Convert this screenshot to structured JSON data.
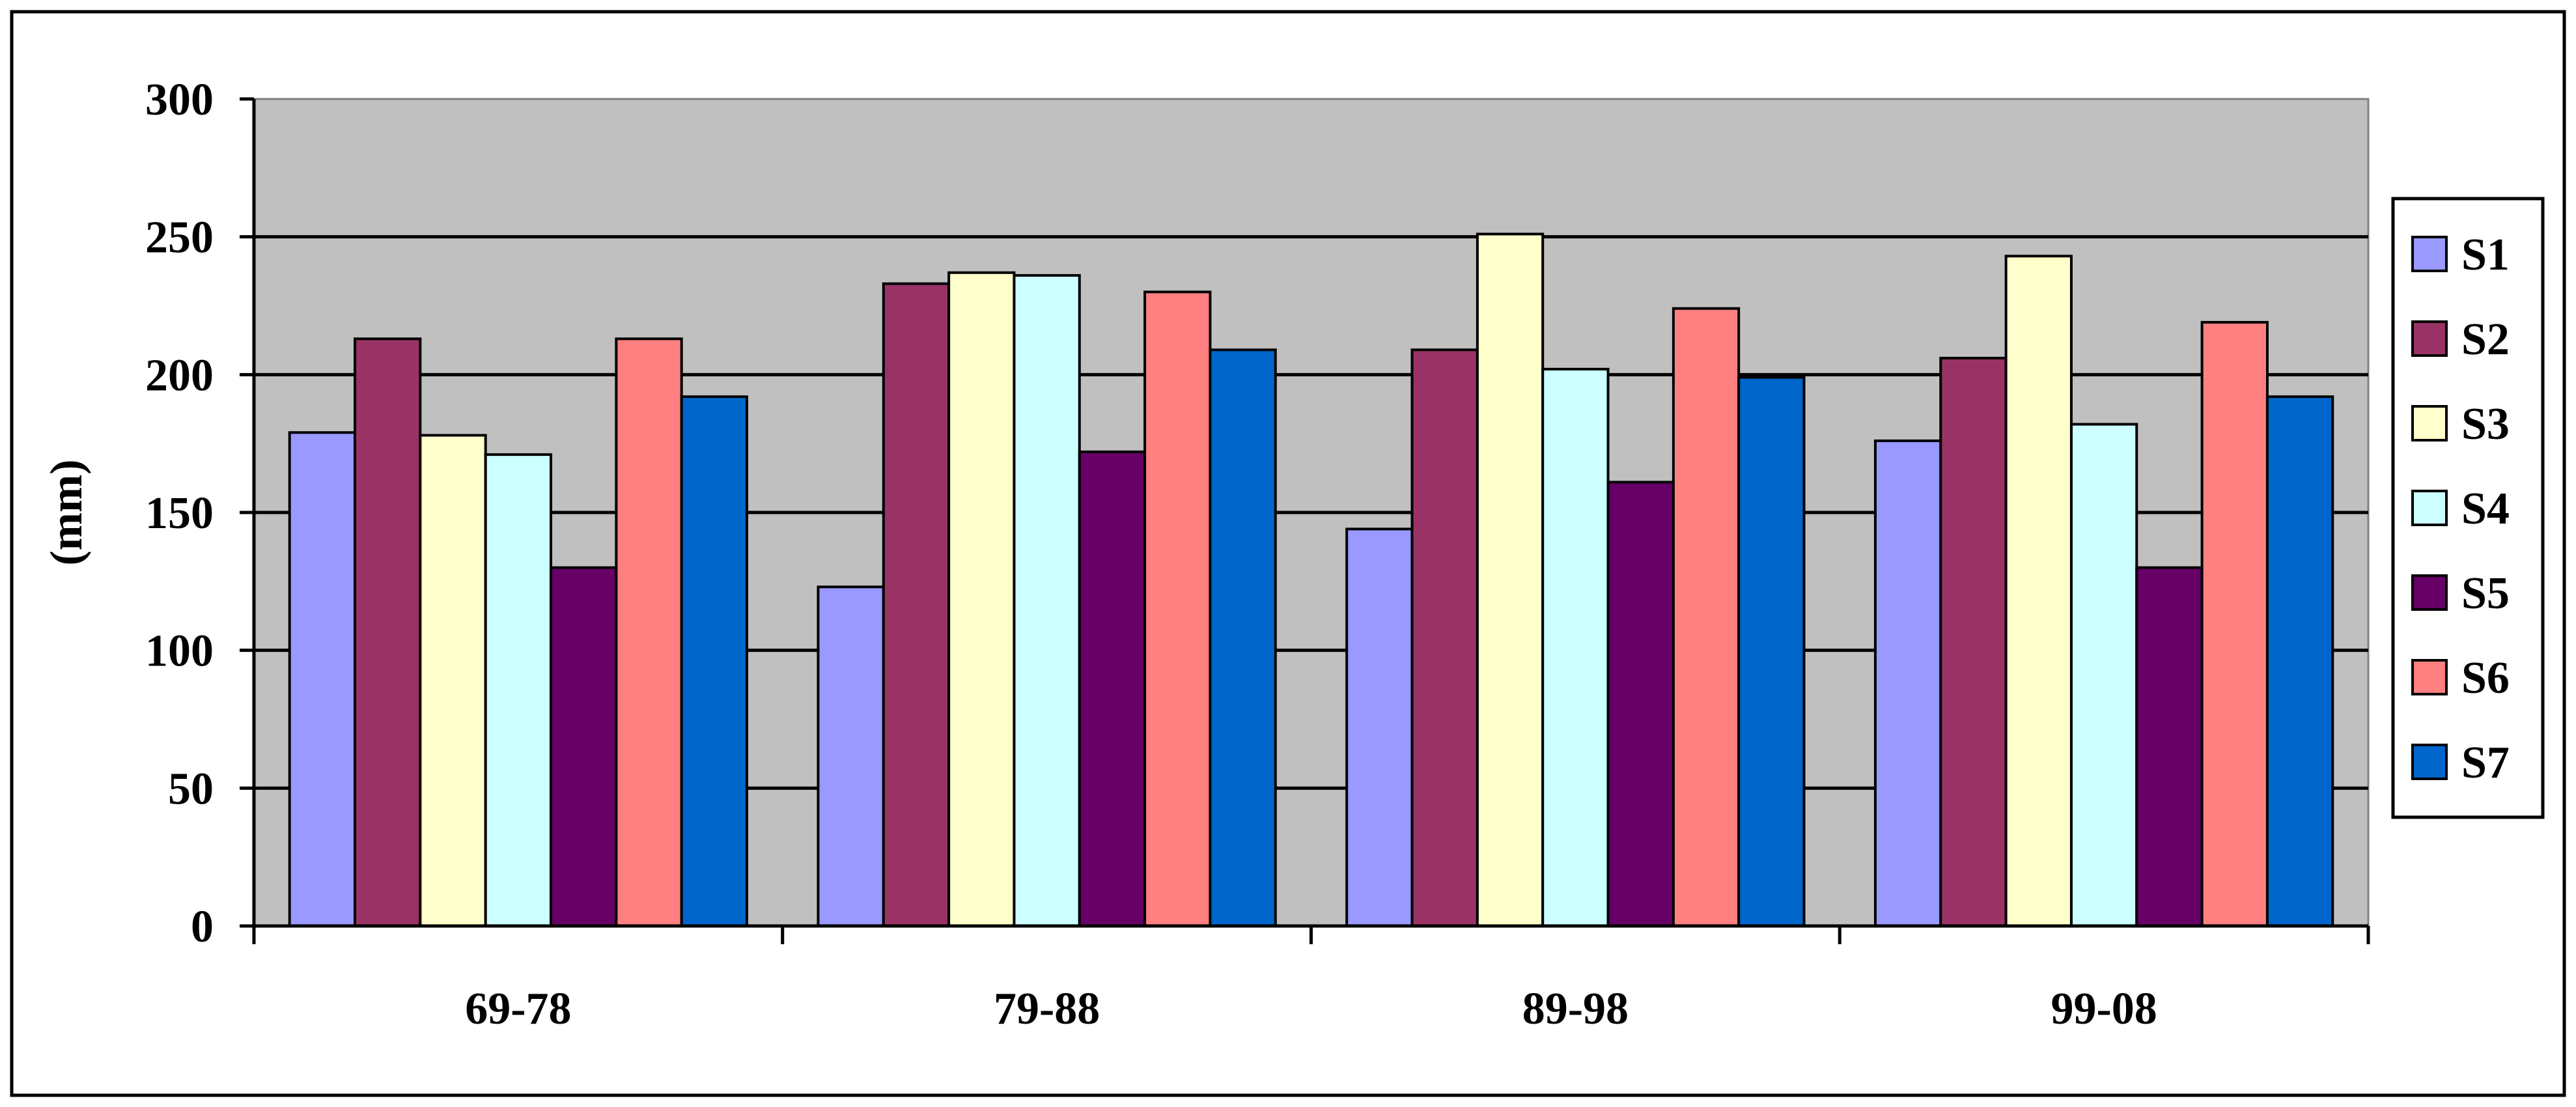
{
  "chart_data": {
    "type": "bar",
    "ylabel": "(mm)",
    "ylim": [
      0,
      300
    ],
    "y_ticks": [
      0,
      50,
      100,
      150,
      200,
      250,
      300
    ],
    "categories": [
      "69-78",
      "79-88",
      "89-98",
      "99-08"
    ],
    "grid": true,
    "legend_position": "right",
    "plot_background": "#c0c0c0",
    "series": [
      {
        "name": "S1",
        "color": "#9999ff",
        "values": [
          179,
          123,
          144,
          176
        ]
      },
      {
        "name": "S2",
        "color": "#993366",
        "values": [
          213,
          233,
          209,
          206
        ]
      },
      {
        "name": "S3",
        "color": "#ffffcc",
        "values": [
          178,
          237,
          251,
          243
        ]
      },
      {
        "name": "S4",
        "color": "#ccffff",
        "values": [
          171,
          236,
          202,
          182
        ]
      },
      {
        "name": "S5",
        "color": "#660066",
        "values": [
          130,
          172,
          161,
          130
        ]
      },
      {
        "name": "S6",
        "color": "#ff8080",
        "values": [
          213,
          230,
          224,
          219
        ]
      },
      {
        "name": "S7",
        "color": "#0066cc",
        "values": [
          192,
          209,
          199,
          192
        ]
      }
    ]
  }
}
